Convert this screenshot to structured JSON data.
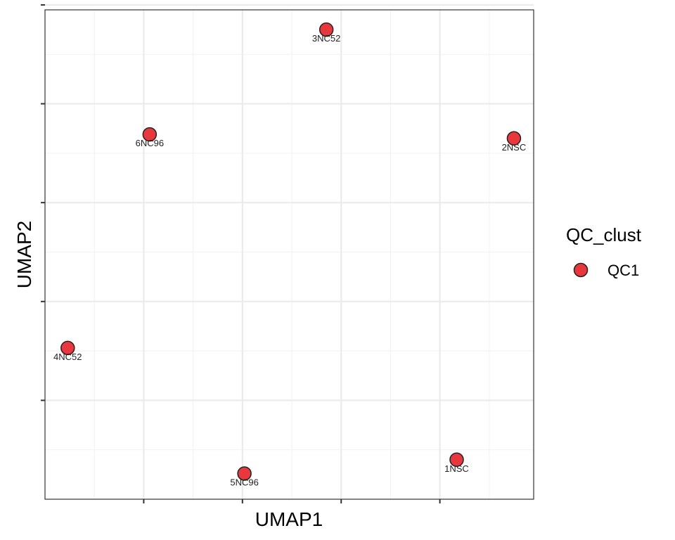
{
  "chart_data": {
    "type": "scatter",
    "xlabel": "UMAP1",
    "ylabel": "UMAP2",
    "xlim": [
      -1.0,
      3.95
    ],
    "ylim": [
      -1.0,
      3.95
    ],
    "x_major_ticks": [
      0,
      1,
      2,
      3
    ],
    "y_major_ticks": [
      0,
      1,
      2,
      3,
      4
    ],
    "grid": true,
    "legend": {
      "title": "QC_clust",
      "position": "right",
      "entries": [
        "QC1"
      ]
    },
    "colors": {
      "QC1": "#E8383D"
    },
    "series": [
      {
        "name": "QC1",
        "points": [
          {
            "label": "3NC52",
            "x": 1.85,
            "y": 3.75
          },
          {
            "label": "6NC96",
            "x": 0.06,
            "y": 2.69
          },
          {
            "label": "2NSC",
            "x": 3.75,
            "y": 2.65
          },
          {
            "label": "4NC52",
            "x": -0.77,
            "y": 0.53
          },
          {
            "label": "5NC96",
            "x": 1.02,
            "y": -0.74
          },
          {
            "label": "1NSC",
            "x": 3.17,
            "y": -0.6
          }
        ]
      }
    ]
  }
}
